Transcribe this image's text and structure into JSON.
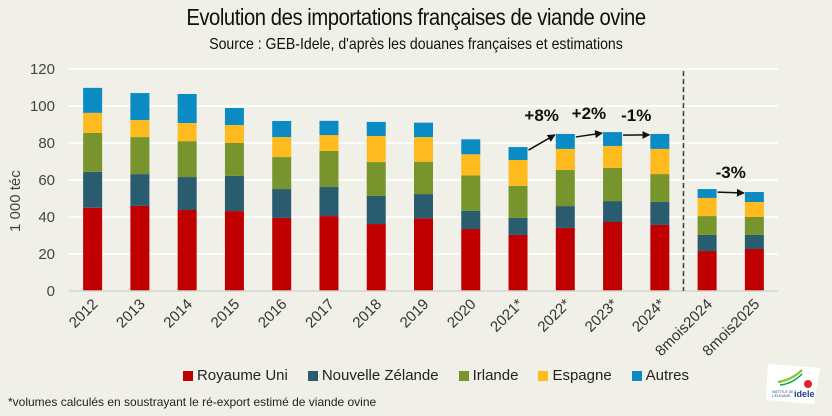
{
  "chart_data": {
    "type": "bar",
    "stacked": true,
    "title": "Evolution des importations françaises de viande ovine",
    "subtitle": "Source : GEB-Idele, d'après les douanes françaises et estimations",
    "xlabel": "",
    "ylabel": "1 000 téc",
    "ylim": [
      0,
      120
    ],
    "yticks": [
      0,
      20,
      40,
      60,
      80,
      100,
      120
    ],
    "grid": true,
    "legend_position": "bottom",
    "categories": [
      "2012",
      "2013",
      "2014",
      "2015",
      "2016",
      "2017",
      "2018",
      "2019",
      "2020",
      "2021*",
      "2022*",
      "2023*",
      "2024*",
      "8mois2024",
      "8mois2025"
    ],
    "separator_after_index": 12,
    "series": [
      {
        "name": "Royaume Uni",
        "color": "#C00000",
        "values": [
          45.0,
          46.0,
          43.8,
          43.2,
          39.5,
          40.5,
          36.2,
          39.3,
          33.5,
          30.3,
          34.1,
          37.3,
          35.7,
          21.6,
          22.7
        ]
      },
      {
        "name": "Nouvelle Zélande",
        "color": "#2A5C70",
        "values": [
          19.4,
          17.2,
          17.8,
          19.0,
          15.6,
          15.7,
          15.2,
          13.1,
          9.9,
          9.2,
          11.8,
          11.3,
          12.4,
          8.7,
          7.6
        ]
      },
      {
        "name": "Irlande",
        "color": "#77952C",
        "values": [
          21.1,
          20.0,
          19.4,
          17.8,
          17.3,
          19.5,
          18.3,
          17.5,
          19.1,
          17.3,
          19.5,
          17.9,
          15.1,
          10.2,
          9.7
        ]
      },
      {
        "name": "Espagne",
        "color": "#FFBA1E",
        "values": [
          10.8,
          9.2,
          9.8,
          9.7,
          10.8,
          8.6,
          14.1,
          13.3,
          11.4,
          14.0,
          11.4,
          11.9,
          13.6,
          9.8,
          8.1
        ]
      },
      {
        "name": "Autres",
        "color": "#0A8BC4",
        "values": [
          13.5,
          14.6,
          15.7,
          9.2,
          8.7,
          7.7,
          7.6,
          7.8,
          8.1,
          7.0,
          8.1,
          7.5,
          8.1,
          4.8,
          5.4
        ]
      }
    ],
    "annotations": [
      {
        "text": "+8%",
        "from": "2021*",
        "to": "2022*"
      },
      {
        "text": "+2%",
        "from": "2022*",
        "to": "2023*"
      },
      {
        "text": "-1%",
        "from": "2023*",
        "to": "2024*"
      },
      {
        "text": "-3%",
        "from": "8mois2024",
        "to": "8mois2025"
      }
    ],
    "footnote": "*volumes calculés en soustrayant le ré-export estimé de viande ovine"
  },
  "logo": {
    "line1": "INSTITUT DE",
    "line2": "L'ÉLEVAGE",
    "brand": "idele"
  }
}
